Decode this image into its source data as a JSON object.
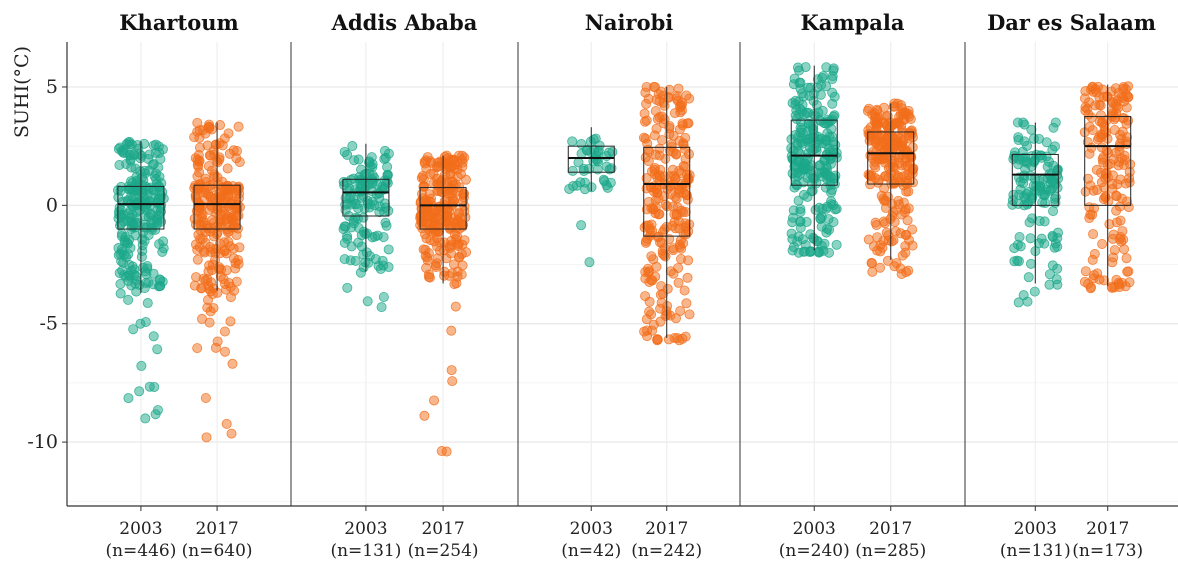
{
  "chart_data": {
    "type": "box",
    "ylabel": "SUHI(°C)",
    "ylim": [
      -12.7,
      6.9
    ],
    "yticks": [
      5,
      0,
      -5,
      -10
    ],
    "ytick_labels": [
      "5",
      "0",
      "-5",
      "-10"
    ],
    "grid": true,
    "colors": {
      "2003": "#1ba88a",
      "2017": "#f26d1a"
    },
    "panels": [
      {
        "title": "Khartoum",
        "groups": [
          {
            "year": "2003",
            "n_label": "(n=446)",
            "n": 446,
            "q1": -1.0,
            "median": 0.05,
            "q3": 0.8,
            "whisker_low": -3.7,
            "whisker_high": 2.7,
            "min": -9.0,
            "max": 2.9
          },
          {
            "year": "2017",
            "n_label": "(n=640)",
            "n": 640,
            "q1": -1.0,
            "median": 0.05,
            "q3": 0.85,
            "whisker_low": -3.6,
            "whisker_high": 3.5,
            "min": -9.8,
            "max": 3.5
          }
        ]
      },
      {
        "title": "Addis Ababa",
        "groups": [
          {
            "year": "2003",
            "n_label": "(n=131)",
            "n": 131,
            "q1": -0.45,
            "median": 0.55,
            "q3": 1.1,
            "whisker_low": -2.8,
            "whisker_high": 2.6,
            "min": -4.3,
            "max": 2.6
          },
          {
            "year": "2017",
            "n_label": "(n=254)",
            "n": 254,
            "q1": -1.0,
            "median": 0.0,
            "q3": 0.75,
            "whisker_low": -3.3,
            "whisker_high": 2.1,
            "min": -10.4,
            "max": 2.1
          }
        ]
      },
      {
        "title": "Nairobi",
        "groups": [
          {
            "year": "2003",
            "n_label": "(n=42)",
            "n": 42,
            "q1": 1.4,
            "median": 2.0,
            "q3": 2.5,
            "whisker_low": 0.6,
            "whisker_high": 3.3,
            "min": -2.4,
            "max": 3.3
          },
          {
            "year": "2017",
            "n_label": "(n=242)",
            "n": 242,
            "q1": -1.3,
            "median": 0.9,
            "q3": 2.45,
            "whisker_low": -5.6,
            "whisker_high": 5.0,
            "min": -5.7,
            "max": 5.0
          }
        ]
      },
      {
        "title": "Kampala",
        "groups": [
          {
            "year": "2003",
            "n_label": "(n=240)",
            "n": 240,
            "q1": 0.85,
            "median": 2.1,
            "q3": 3.6,
            "whisker_low": -1.9,
            "whisker_high": 5.9,
            "min": -2.0,
            "max": 5.9
          },
          {
            "year": "2017",
            "n_label": "(n=285)",
            "n": 285,
            "q1": 0.9,
            "median": 2.2,
            "q3": 3.1,
            "whisker_low": -2.3,
            "whisker_high": 4.3,
            "min": -2.9,
            "max": 4.3
          }
        ]
      },
      {
        "title": "Dar es Salaam",
        "groups": [
          {
            "year": "2003",
            "n_label": "(n=131)",
            "n": 131,
            "q1": 0.0,
            "median": 1.3,
            "q3": 2.15,
            "whisker_low": -3.3,
            "whisker_high": 3.5,
            "min": -4.1,
            "max": 3.5
          },
          {
            "year": "2017",
            "n_label": "(n=173)",
            "n": 173,
            "q1": 0.0,
            "median": 2.5,
            "q3": 3.75,
            "whisker_low": -3.4,
            "whisker_high": 5.1,
            "min": -3.5,
            "max": 5.1
          }
        ]
      }
    ]
  }
}
